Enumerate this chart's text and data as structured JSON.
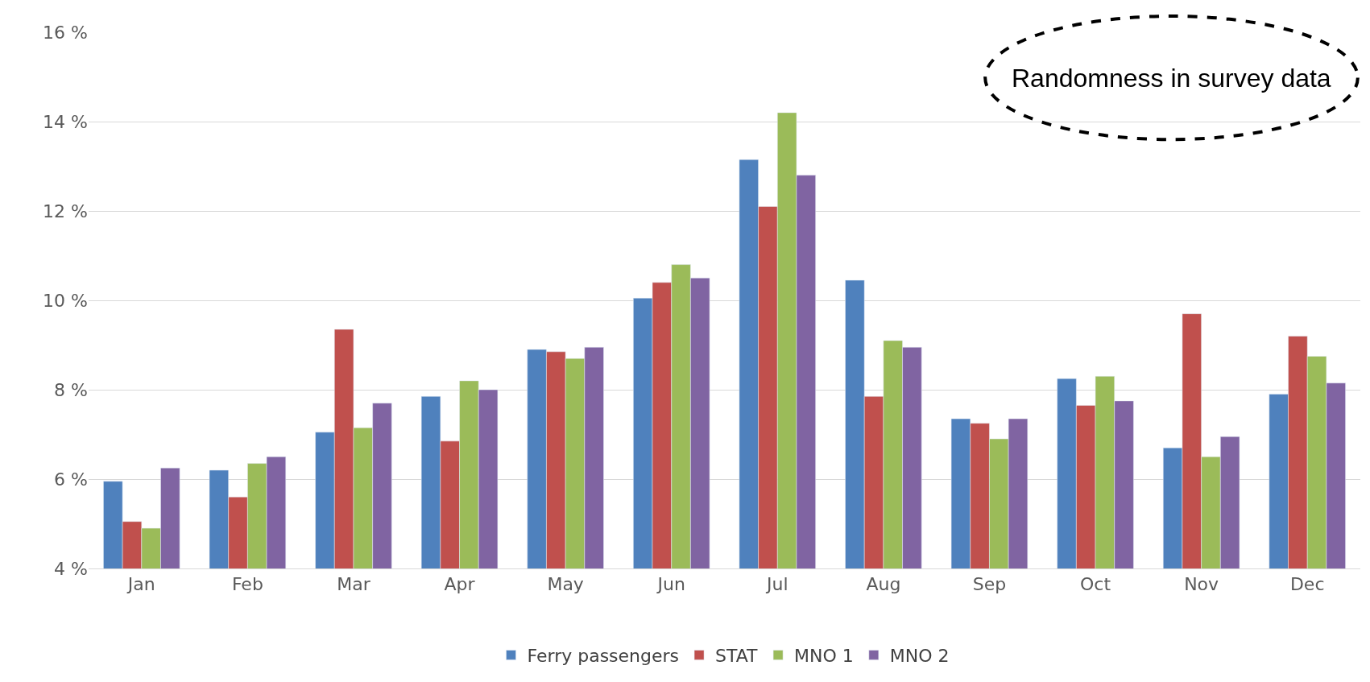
{
  "chart_data": {
    "type": "bar",
    "categories": [
      "Jan",
      "Feb",
      "Mar",
      "Apr",
      "May",
      "Jun",
      "Jul",
      "Aug",
      "Sep",
      "Oct",
      "Nov",
      "Dec"
    ],
    "series": [
      {
        "name": "Ferry passengers",
        "color": "#4f81bd",
        "values": [
          5.95,
          6.2,
          7.05,
          7.85,
          8.9,
          10.05,
          13.15,
          10.45,
          7.35,
          8.25,
          6.7,
          7.9
        ]
      },
      {
        "name": "STAT",
        "color": "#c0504d",
        "values": [
          5.05,
          5.6,
          9.35,
          6.85,
          8.85,
          10.4,
          12.1,
          7.85,
          7.25,
          7.65,
          9.7,
          9.2
        ]
      },
      {
        "name": "MNO 1",
        "color": "#9bbb59",
        "values": [
          4.9,
          6.35,
          7.15,
          8.2,
          8.7,
          10.8,
          14.2,
          9.1,
          6.9,
          8.3,
          6.5,
          8.75
        ]
      },
      {
        "name": "MNO 2",
        "color": "#8064a2",
        "values": [
          6.25,
          6.5,
          7.7,
          8.0,
          8.95,
          10.5,
          12.8,
          8.95,
          7.35,
          7.75,
          6.95,
          8.15
        ]
      }
    ],
    "ylim": [
      4,
      16
    ],
    "yticks": [
      {
        "value": 4,
        "label": "4 %"
      },
      {
        "value": 6,
        "label": "6 %"
      },
      {
        "value": 8,
        "label": "8 %"
      },
      {
        "value": 10,
        "label": "10 %"
      },
      {
        "value": 12,
        "label": "12 %"
      },
      {
        "value": 14,
        "label": "14 %"
      },
      {
        "value": 16,
        "label": "16 %"
      }
    ],
    "grid": "y",
    "legend": "bottom",
    "annotations": [
      "Randomness in survey data"
    ]
  }
}
